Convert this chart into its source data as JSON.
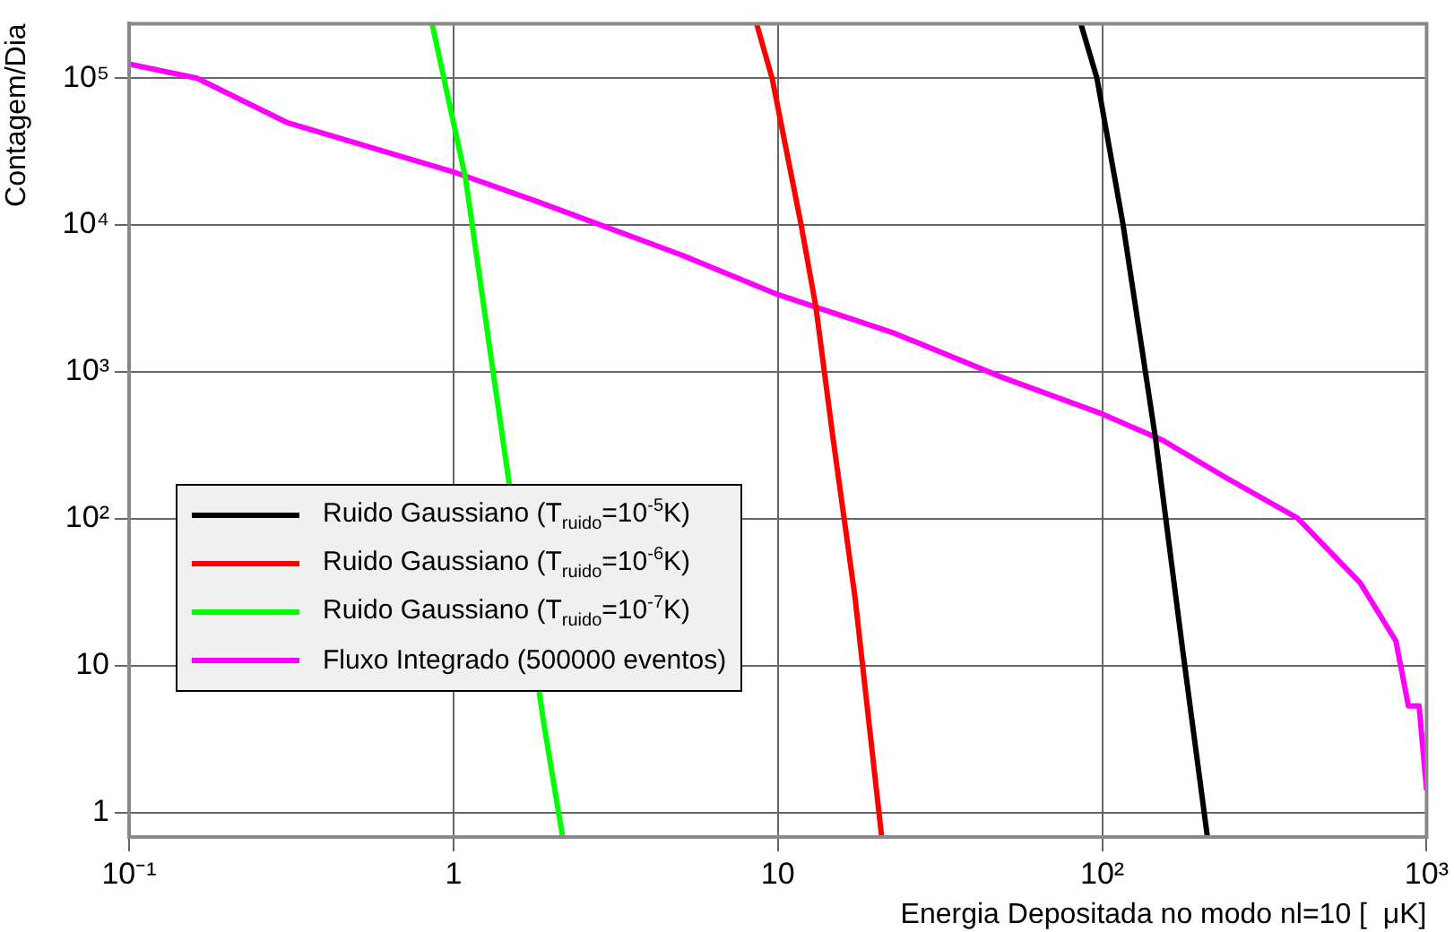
{
  "chart_data": {
    "type": "line",
    "xlabel": "Energia Depositada no modo nl=10 [  μK]",
    "ylabel": "Contagem/Dia",
    "log": "xy",
    "grid": true,
    "legend": "bottom left",
    "xlim": [
      0.1,
      1000
    ],
    "ylim": [
      0.68,
      235000
    ],
    "xticks": [
      {
        "value": 0.1,
        "label": "10⁻¹"
      },
      1,
      10,
      {
        "value": 100,
        "label": "10²"
      },
      {
        "value": 1000,
        "label": "10³"
      }
    ],
    "yticks": [
      1,
      10,
      {
        "value": 100,
        "label": "10²"
      },
      {
        "value": 1000,
        "label": "10³"
      },
      {
        "value": 10000,
        "label": "10⁴"
      },
      {
        "value": 100000,
        "label": "10⁵"
      }
    ],
    "series": [
      {
        "name": "Ruido Gaussiano (T$_{ruido}$=10$^{-5}$K)",
        "color": "#000000",
        "x": [
          85.9,
          96.3,
          116,
          146,
          177,
          211
        ],
        "values": [
          235000,
          100000,
          10000,
          351,
          12.8,
          0.68
        ]
      },
      {
        "name": "Ruido Gaussiano (T$_{ruido}$=10$^{-6}$K)",
        "color": "#ff0000",
        "x": [
          8.6,
          9.6,
          11.8,
          13.1,
          14.8,
          17.3,
          20.9
        ],
        "values": [
          235000,
          100000,
          10000,
          2770,
          351,
          29,
          0.68
        ]
      },
      {
        "name": "Ruido Gaussiano (T$_{ruido}$=10$^{-7}$K)",
        "color": "#00ff00",
        "x": [
          0.859,
          1.09,
          1.32,
          1.89,
          2.17
        ],
        "values": [
          235000,
          20700,
          1060,
          4.3,
          0.68
        ]
      },
      {
        "name": "Fluxo Integrado (500000 eventos)",
        "color": "#ff00ff",
        "x": [
          0.1,
          0.162,
          0.306,
          1,
          1.82,
          5,
          10,
          22.9,
          49,
          100,
          154,
          240,
          400,
          624,
          804,
          879,
          948,
          1000
        ],
        "values": [
          125000,
          100000,
          50000,
          23000,
          14400,
          6300,
          3360,
          1830,
          920,
          517,
          341,
          191,
          101,
          36.6,
          14.7,
          5.3,
          5.3,
          1.41
        ]
      }
    ]
  }
}
